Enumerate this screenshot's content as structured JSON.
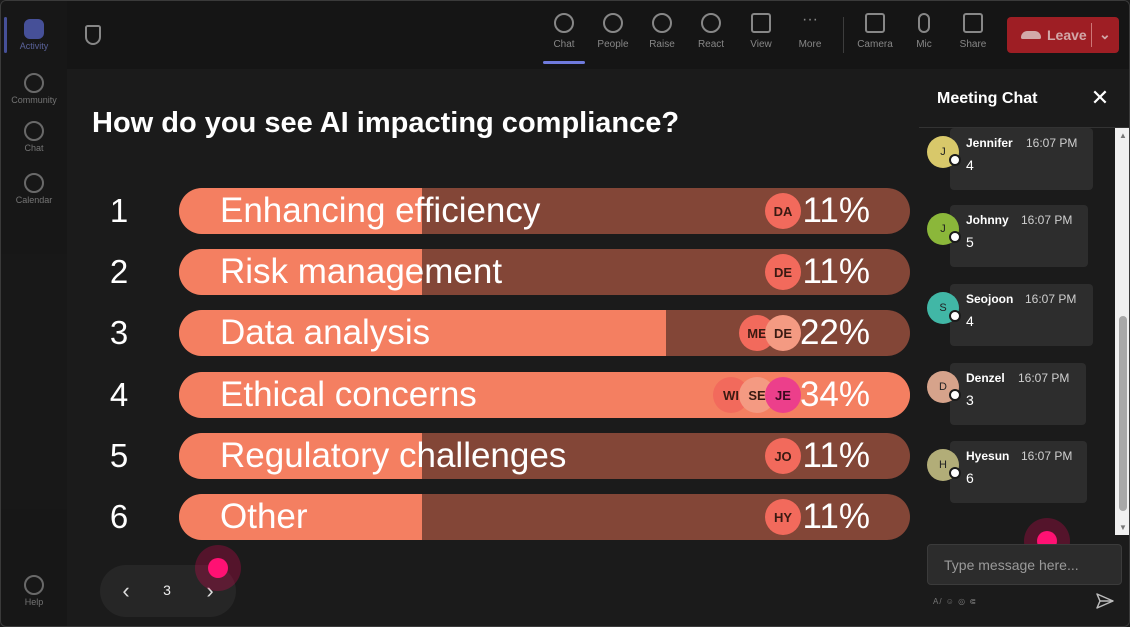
{
  "rail": {
    "items": [
      {
        "label": "Activity",
        "icon": "bell-icon",
        "active": true
      },
      {
        "label": "Community",
        "icon": "community-icon"
      },
      {
        "label": "Chat",
        "icon": "chat-icon"
      },
      {
        "label": "Calendar",
        "icon": "calendar-icon"
      },
      {
        "label": "Help",
        "icon": "help-icon"
      }
    ]
  },
  "toolbar": {
    "items": [
      {
        "label": "Chat",
        "icon": "chat-icon",
        "active": true
      },
      {
        "label": "People",
        "icon": "people-icon"
      },
      {
        "label": "Raise",
        "icon": "hand-icon"
      },
      {
        "label": "React",
        "icon": "smiley-icon"
      },
      {
        "label": "View",
        "icon": "grid-icon"
      },
      {
        "label": "More",
        "icon": "more-icon"
      },
      {
        "label": "Camera",
        "icon": "camera-icon"
      },
      {
        "label": "Mic",
        "icon": "mic-icon"
      },
      {
        "label": "Share",
        "icon": "share-icon"
      }
    ],
    "leave_label": "Leave"
  },
  "poll": {
    "question": "How do you see AI impacting compliance?",
    "options": [
      {
        "num": "1",
        "label": "Enhancing efficiency",
        "pct": "11%",
        "value": 0.11,
        "voters": [
          "DA"
        ]
      },
      {
        "num": "2",
        "label": "Risk management",
        "pct": "11%",
        "value": 0.11,
        "voters": [
          "DE"
        ]
      },
      {
        "num": "3",
        "label": "Data analysis",
        "pct": "22%",
        "value": 0.22,
        "voters": [
          "ME",
          "DE"
        ]
      },
      {
        "num": "4",
        "label": "Ethical concerns",
        "pct": "34%",
        "value": 0.34,
        "voters": [
          "WI",
          "SE",
          "JE"
        ]
      },
      {
        "num": "5",
        "label": "Regulatory challenges",
        "pct": "11%",
        "value": 0.11,
        "voters": [
          "JO"
        ]
      },
      {
        "num": "6",
        "label": "Other",
        "pct": "11%",
        "value": 0.11,
        "voters": [
          "HY"
        ]
      }
    ]
  },
  "pager": {
    "page": "3",
    "prev": "‹",
    "next": "›"
  },
  "chat": {
    "title": "Meeting Chat",
    "close": "✕",
    "messages": [
      {
        "initial": "J",
        "name": "Jennifer",
        "time": "16:07 PM",
        "text": "4",
        "color": "#d8c86a"
      },
      {
        "initial": "J",
        "name": "Johnny",
        "time": "16:07 PM",
        "text": "5",
        "color": "#8bb73a"
      },
      {
        "initial": "S",
        "name": "Seojoon",
        "time": "16:07 PM",
        "text": "4",
        "color": "#41b7a6"
      },
      {
        "initial": "D",
        "name": "Denzel",
        "time": "16:07 PM",
        "text": "3",
        "color": "#d6a38b"
      },
      {
        "initial": "H",
        "name": "Hyesun",
        "time": "16:07 PM",
        "text": "6",
        "color": "#b2ad78"
      }
    ],
    "input_placeholder": "Type message here...",
    "format_hint": "A/ ☺ ◎ ⋐"
  }
}
